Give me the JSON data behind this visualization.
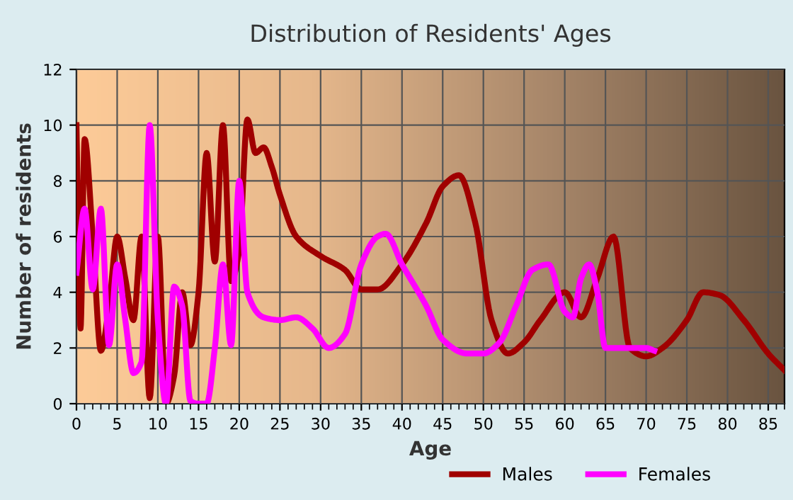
{
  "chart_data": {
    "type": "line",
    "title": "Distribution of Residents' Ages",
    "xlabel": "Age",
    "ylabel": "Number of residents",
    "xlim": [
      0,
      87
    ],
    "xticks": [
      0,
      5,
      10,
      15,
      20,
      25,
      30,
      35,
      40,
      45,
      50,
      55,
      60,
      65,
      70,
      75,
      80,
      85
    ],
    "ylim": [
      0,
      12
    ],
    "yticks": [
      0,
      2,
      4,
      6,
      8,
      10,
      12
    ],
    "grid": true,
    "legend": "bottom right",
    "marker": "none",
    "line_style": "solid",
    "series": [
      {
        "name": "Males",
        "color": "#a00000",
        "x": [
          0,
          0.5,
          1,
          2,
          3,
          4,
          5,
          6,
          7,
          8,
          9,
          10,
          11,
          12,
          13,
          14,
          15,
          16,
          17,
          18,
          19,
          20,
          21,
          22,
          23,
          24,
          25,
          27,
          30,
          33,
          35,
          37,
          40,
          43,
          45,
          47,
          49,
          51,
          53,
          55,
          57,
          60,
          62,
          64,
          66,
          68,
          70,
          72,
          75,
          77,
          79,
          82,
          85,
          87
        ],
        "values": [
          10,
          2.7,
          9.5,
          6,
          1.9,
          3.5,
          6,
          4.5,
          3,
          6,
          0.2,
          6,
          0,
          1,
          4,
          2.1,
          4,
          9,
          5.1,
          10,
          4.4,
          5.5,
          10.2,
          9,
          9.2,
          8.5,
          7.5,
          6,
          5.3,
          4.8,
          4.1,
          4.1,
          5,
          6.5,
          7.8,
          8.2,
          6.5,
          3,
          1.8,
          2.2,
          3,
          4,
          3.1,
          4.5,
          6,
          2,
          1.7,
          2,
          3,
          4,
          3.9,
          3,
          1.8,
          1.2
        ]
      },
      {
        "name": "Females",
        "color": "#ff00ff",
        "x": [
          0,
          1,
          2,
          3,
          4,
          5,
          6,
          7,
          8,
          9,
          10,
          11,
          12,
          13,
          14,
          15,
          16,
          17,
          18,
          19,
          20,
          21,
          23,
          25,
          27,
          29,
          31,
          33,
          35,
          37,
          38,
          40,
          43,
          45,
          48,
          50,
          52,
          54,
          56,
          58,
          60,
          61,
          62,
          63,
          64,
          65,
          67,
          70,
          71
        ],
        "values": [
          4.7,
          7,
          4.1,
          7,
          2.1,
          5,
          3,
          1.1,
          1.5,
          10,
          3,
          0,
          4.2,
          3.5,
          0.1,
          0,
          0,
          2,
          5,
          2.1,
          8,
          4,
          3.1,
          3,
          3.1,
          2.7,
          2,
          2.5,
          5,
          6,
          6.1,
          5,
          3.5,
          2.3,
          1.8,
          1.8,
          2.2,
          3.5,
          4.8,
          5,
          3.3,
          3.1,
          4.5,
          5,
          4,
          2,
          2,
          2,
          1.9
        ]
      }
    ]
  }
}
